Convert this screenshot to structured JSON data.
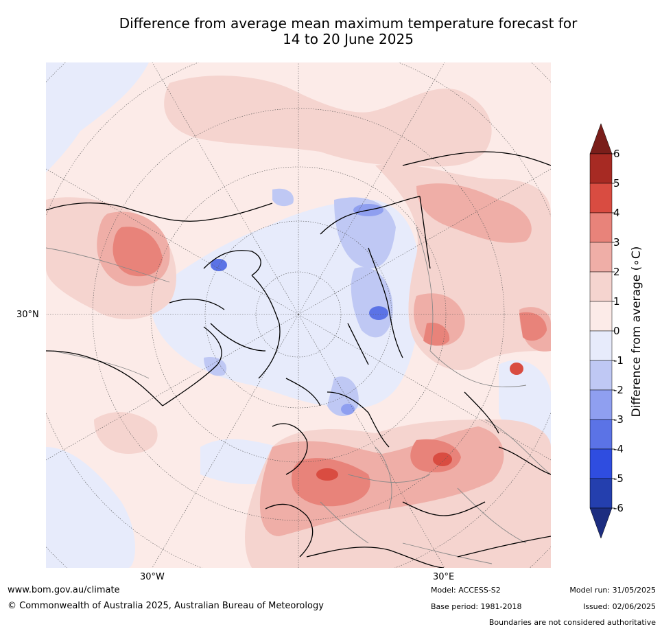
{
  "title": {
    "line1": "Difference from average mean maximum temperature forecast for",
    "line2": "14 to 20 June 2025"
  },
  "map": {
    "projection": "north-polar-stereographic",
    "graticule_labels": {
      "lat_30n": "30°N",
      "lon_30w": "30°W",
      "lon_30e": "30°E"
    }
  },
  "colorbar": {
    "label": "Difference from average (∘C)",
    "ticks": [
      "6",
      "5",
      "4",
      "3",
      "2",
      "1",
      "0",
      "-1",
      "-2",
      "-3",
      "-4",
      "-5",
      "-6"
    ],
    "bins": [
      {
        "range": [
          6,
          null
        ],
        "color": "#7a1e1a"
      },
      {
        "range": [
          5,
          6
        ],
        "color": "#a72a23"
      },
      {
        "range": [
          4,
          5
        ],
        "color": "#d94c41"
      },
      {
        "range": [
          3,
          4
        ],
        "color": "#e8837a"
      },
      {
        "range": [
          2,
          3
        ],
        "color": "#efaea7"
      },
      {
        "range": [
          1,
          2
        ],
        "color": "#f5d4cf"
      },
      {
        "range": [
          0,
          1
        ],
        "color": "#fcebe8"
      },
      {
        "range": [
          -1,
          0
        ],
        "color": "#e7ebfb"
      },
      {
        "range": [
          -2,
          -1
        ],
        "color": "#bfc8f4"
      },
      {
        "range": [
          -3,
          -2
        ],
        "color": "#8f9ff0"
      },
      {
        "range": [
          -4,
          -3
        ],
        "color": "#5b73e6"
      },
      {
        "range": [
          -5,
          -4
        ],
        "color": "#2f4de0"
      },
      {
        "range": [
          -6,
          -5
        ],
        "color": "#243fae"
      },
      {
        "range": [
          null,
          -6
        ],
        "color": "#1c2d80"
      }
    ]
  },
  "footer": {
    "website": "www.bom.gov.au/climate",
    "copyright": "© Commonwealth of Australia 2025, Australian Bureau of Meteorology",
    "model": "Model: ACCESS-S2",
    "base_period": "Base period: 1981-2018",
    "model_run": "Model run: 31/05/2025",
    "issued": "Issued: 02/06/2025",
    "disclaimer": "Boundaries are not considered authoritative"
  }
}
